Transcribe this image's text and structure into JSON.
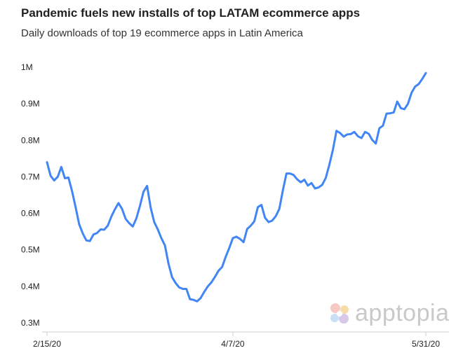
{
  "chart_data": {
    "type": "line",
    "title": "Pandemic fuels new installs of top LATAM ecommerce apps",
    "subtitle": "Daily downloads of top 19 ecommerce apps in Latin America",
    "xlabel": "",
    "ylabel": "",
    "ylim": [
      300000,
      1000000
    ],
    "yticks": [
      "0.3M",
      "0.4M",
      "0.5M",
      "0.6M",
      "0.7M",
      "0.8M",
      "0.9M",
      "1M"
    ],
    "xticks": [
      "2/15/20",
      "4/7/20",
      "5/31/20"
    ],
    "line_color": "#4285f4",
    "grid": false,
    "x": [
      "2/15/20",
      "2/16/20",
      "2/17/20",
      "2/18/20",
      "2/19/20",
      "2/20/20",
      "2/21/20",
      "2/22/20",
      "2/23/20",
      "2/24/20",
      "2/25/20",
      "2/26/20",
      "2/27/20",
      "2/28/20",
      "2/29/20",
      "3/1/20",
      "3/2/20",
      "3/3/20",
      "3/4/20",
      "3/5/20",
      "3/6/20",
      "3/7/20",
      "3/8/20",
      "3/9/20",
      "3/10/20",
      "3/11/20",
      "3/12/20",
      "3/13/20",
      "3/14/20",
      "3/15/20",
      "3/16/20",
      "3/17/20",
      "3/18/20",
      "3/19/20",
      "3/20/20",
      "3/21/20",
      "3/22/20",
      "3/23/20",
      "3/24/20",
      "3/25/20",
      "3/26/20",
      "3/27/20",
      "3/28/20",
      "3/29/20",
      "3/30/20",
      "3/31/20",
      "4/1/20",
      "4/2/20",
      "4/3/20",
      "4/4/20",
      "4/5/20",
      "4/6/20",
      "4/7/20",
      "4/8/20",
      "4/9/20",
      "4/10/20",
      "4/11/20",
      "4/12/20",
      "4/13/20",
      "4/14/20",
      "4/15/20",
      "4/16/20",
      "4/17/20",
      "4/18/20",
      "4/19/20",
      "4/20/20",
      "4/21/20",
      "4/22/20",
      "4/23/20",
      "4/24/20",
      "4/25/20",
      "4/26/20",
      "4/27/20",
      "4/28/20",
      "4/29/20",
      "4/30/20",
      "5/1/20",
      "5/2/20",
      "5/3/20",
      "5/4/20",
      "5/5/20",
      "5/6/20",
      "5/7/20",
      "5/8/20",
      "5/9/20",
      "5/10/20",
      "5/11/20",
      "5/12/20",
      "5/13/20",
      "5/14/20",
      "5/15/20",
      "5/16/20",
      "5/17/20",
      "5/18/20",
      "5/19/20",
      "5/20/20",
      "5/21/20",
      "5/22/20",
      "5/23/20",
      "5/24/20",
      "5/25/20",
      "5/26/20",
      "5/27/20",
      "5/28/20",
      "5/29/20",
      "5/30/20",
      "5/31/20"
    ],
    "series": [
      {
        "values": [
          740000,
          703000,
          690000,
          700000,
          727000,
          696000,
          698000,
          661000,
          617000,
          570000,
          545000,
          526000,
          524000,
          542000,
          546000,
          556000,
          555000,
          566000,
          591000,
          611000,
          628000,
          612000,
          585000,
          573000,
          564000,
          586000,
          620000,
          659000,
          675000,
          616000,
          576000,
          556000,
          532000,
          512000,
          462000,
          425000,
          409000,
          397000,
          393000,
          393000,
          365000,
          363000,
          359000,
          368000,
          385000,
          400000,
          411000,
          426000,
          443000,
          453000,
          481000,
          505000,
          532000,
          536000,
          530000,
          521000,
          557000,
          566000,
          578000,
          617000,
          623000,
          588000,
          576000,
          580000,
          592000,
          612000,
          663000,
          709000,
          709000,
          705000,
          693000,
          685000,
          692000,
          676000,
          683000,
          668000,
          671000,
          678000,
          697000,
          733000,
          774000,
          826000,
          820000,
          810000,
          816000,
          817000,
          823000,
          811000,
          806000,
          823000,
          818000,
          801000,
          791000,
          833000,
          840000,
          873000,
          874000,
          876000,
          906000,
          888000,
          885000,
          900000,
          930000,
          947000,
          954000,
          968000,
          984000
        ]
      }
    ]
  },
  "logo": {
    "text": "apptopia"
  }
}
